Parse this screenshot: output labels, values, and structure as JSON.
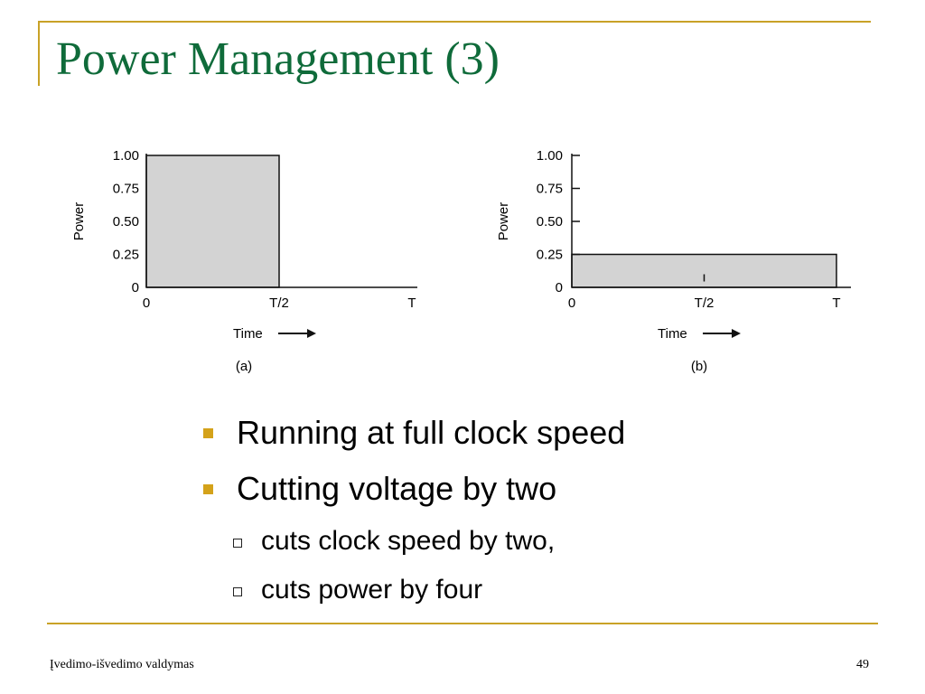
{
  "slide": {
    "title": "Power Management (3)",
    "accent_color": "#c9a227",
    "title_color": "#0f6b3a",
    "bullets": [
      {
        "text": "Running at full clock speed",
        "level": 1
      },
      {
        "text": "Cutting voltage by two",
        "level": 1
      },
      {
        "text": "cuts clock speed by two,",
        "level": 2
      },
      {
        "text": "cuts power by four",
        "level": 2
      }
    ],
    "footer": {
      "left": "Įvedimo-išvedimo valdymas",
      "page_number": "49"
    }
  },
  "chart_data": [
    {
      "type": "area",
      "panel_label": "(a)",
      "ylabel": "Power",
      "xlabel": "Time",
      "y_ticks": [
        "0",
        "0.25",
        "0.50",
        "0.75",
        "1.00"
      ],
      "x_ticks": [
        "0",
        "T/2",
        "T"
      ],
      "ylim": [
        0,
        1.0
      ],
      "series": [
        {
          "x": [
            "0",
            "T/2"
          ],
          "values": [
            1.0,
            1.0
          ]
        }
      ],
      "fill_color": "#d3d3d3"
    },
    {
      "type": "area",
      "panel_label": "(b)",
      "ylabel": "Power",
      "xlabel": "Time",
      "y_ticks": [
        "0",
        "0.25",
        "0.50",
        "0.75",
        "1.00"
      ],
      "x_ticks": [
        "0",
        "T/2",
        "T"
      ],
      "ylim": [
        0,
        1.0
      ],
      "series": [
        {
          "x": [
            "0",
            "T"
          ],
          "values": [
            0.25,
            0.25
          ]
        }
      ],
      "fill_color": "#d3d3d3"
    }
  ]
}
